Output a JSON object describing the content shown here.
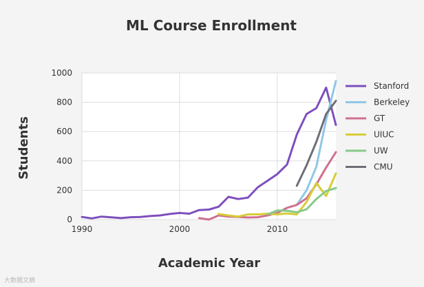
{
  "chart_data": {
    "type": "line",
    "title": "ML Course Enrollment",
    "xlabel": "Academic Year",
    "ylabel": "Students",
    "xlim": [
      1990,
      2016
    ],
    "ylim": [
      0,
      1000
    ],
    "xticks": [
      1990,
      2000,
      2010
    ],
    "yticks": [
      0,
      200,
      400,
      600,
      800,
      1000
    ],
    "grid": true,
    "legend_position": "right",
    "series": [
      {
        "name": "Stanford",
        "color": "#7d4fbd",
        "points": [
          [
            1990,
            18
          ],
          [
            1991,
            8
          ],
          [
            1992,
            20
          ],
          [
            1993,
            15
          ],
          [
            1994,
            10
          ],
          [
            1995,
            16
          ],
          [
            1996,
            18
          ],
          [
            1997,
            24
          ],
          [
            1998,
            28
          ],
          [
            1999,
            38
          ],
          [
            2000,
            45
          ],
          [
            2001,
            40
          ],
          [
            2002,
            65
          ],
          [
            2003,
            68
          ],
          [
            2004,
            88
          ],
          [
            2005,
            155
          ],
          [
            2006,
            140
          ],
          [
            2007,
            150
          ],
          [
            2008,
            220
          ],
          [
            2009,
            265
          ],
          [
            2010,
            310
          ],
          [
            2011,
            375
          ],
          [
            2012,
            580
          ],
          [
            2013,
            720
          ],
          [
            2014,
            760
          ],
          [
            2015,
            900
          ],
          [
            2016,
            645
          ]
        ]
      },
      {
        "name": "Berkeley",
        "color": "#8ec7e6",
        "points": [
          [
            2012,
            100
          ],
          [
            2013,
            200
          ],
          [
            2014,
            360
          ],
          [
            2015,
            680
          ],
          [
            2016,
            945
          ]
        ]
      },
      {
        "name": "GT",
        "color": "#cf6f8e",
        "points": [
          [
            2002,
            10
          ],
          [
            2003,
            0
          ],
          [
            2004,
            28
          ],
          [
            2005,
            20
          ],
          [
            2006,
            18
          ],
          [
            2007,
            14
          ],
          [
            2008,
            16
          ],
          [
            2009,
            28
          ],
          [
            2010,
            45
          ],
          [
            2011,
            80
          ],
          [
            2012,
            100
          ],
          [
            2013,
            145
          ],
          [
            2014,
            240
          ],
          [
            2015,
            355
          ],
          [
            2016,
            460
          ]
        ]
      },
      {
        "name": "UIUC",
        "color": "#d7cd38",
        "points": [
          [
            2004,
            38
          ],
          [
            2005,
            28
          ],
          [
            2006,
            20
          ],
          [
            2007,
            35
          ],
          [
            2008,
            35
          ],
          [
            2009,
            40
          ],
          [
            2010,
            35
          ],
          [
            2011,
            42
          ],
          [
            2012,
            35
          ],
          [
            2013,
            120
          ],
          [
            2014,
            250
          ],
          [
            2015,
            160
          ],
          [
            2016,
            315
          ]
        ]
      },
      {
        "name": "UW",
        "color": "#87c98a",
        "points": [
          [
            2009,
            35
          ],
          [
            2010,
            62
          ],
          [
            2011,
            60
          ],
          [
            2012,
            50
          ],
          [
            2013,
            70
          ],
          [
            2014,
            140
          ],
          [
            2015,
            195
          ],
          [
            2016,
            215
          ]
        ]
      },
      {
        "name": "CMU",
        "color": "#6e6e78",
        "points": [
          [
            2012,
            230
          ],
          [
            2013,
            370
          ],
          [
            2014,
            530
          ],
          [
            2015,
            720
          ],
          [
            2016,
            810
          ]
        ]
      }
    ]
  },
  "watermark": "大数据文摘"
}
